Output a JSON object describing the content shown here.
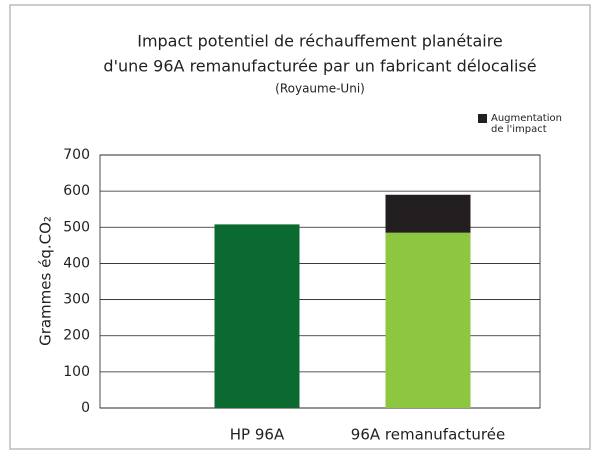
{
  "chart_data": {
    "type": "stacked_bar",
    "title": [
      "Impact potentiel de réchauffement planétaire",
      "d'une 96A remanufacturée par un fabricant délocalisé"
    ],
    "subtitle": "(Royaume-Uni)",
    "y_label": "Grammes éq.CO₂",
    "categories": [
      "HP 96A",
      "96A remanufacturée"
    ],
    "series": [
      {
        "colors": [
          "#0b6a30",
          "#8dc63f"
        ],
        "values": [
          508,
          485
        ]
      },
      {
        "name": "Augmentation de l'impact",
        "color": "#231f20",
        "values": [
          null,
          105
        ]
      }
    ],
    "ylim": [
      0,
      700
    ],
    "yticks": [
      0,
      100,
      200,
      300,
      400,
      500,
      600,
      700
    ],
    "grid": true,
    "legend": "upper-right"
  }
}
